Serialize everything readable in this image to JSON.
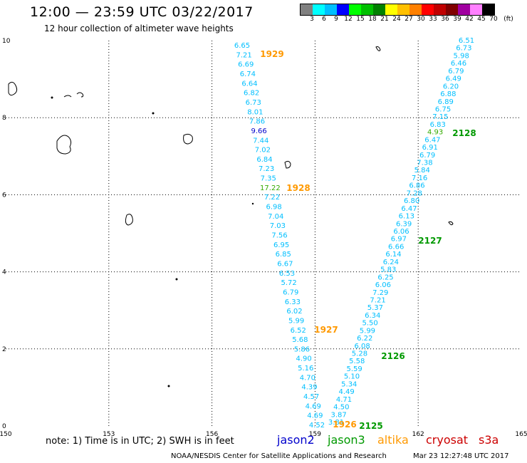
{
  "header": {
    "title": "12:00 — 23:59 UTC 03/22/2017",
    "subtitle": "12 hour collection of altimeter wave heights"
  },
  "scale": {
    "labels": [
      "3",
      "6",
      "9",
      "12",
      "15",
      "18",
      "21",
      "24",
      "27",
      "30",
      "33",
      "36",
      "39",
      "42",
      "45",
      "70",
      "(ft)"
    ],
    "colors": [
      "#808080",
      "#00ffff",
      "#00bfff",
      "#0000ff",
      "#00ff00",
      "#00c000",
      "#008000",
      "#ffff00",
      "#ffc000",
      "#ff8000",
      "#ff0000",
      "#c00000",
      "#800000",
      "#a000a0",
      "#ff80ff",
      "#000000"
    ]
  },
  "footer": {
    "note": "note:  1) Time is in UTC;  2) SWH is in feet",
    "credit": "NOAA/NESDIS Center for Satellite Applications and Research",
    "timestamp": "Mar 23 12:27:48 UTC 2017",
    "legend": [
      {
        "label": "jason2",
        "color": "#0000cc"
      },
      {
        "label": "jason3",
        "color": "#009900"
      },
      {
        "label": "altika",
        "color": "#ff9900"
      },
      {
        "label": "cryosat",
        "color": "#cc0000"
      },
      {
        "label": "s3a",
        "color": "#cc0000"
      }
    ]
  },
  "map": {
    "lon_ticks": [
      "150",
      "153",
      "156",
      "159",
      "162",
      "165"
    ],
    "lat_ticks": [
      "0",
      "2",
      "4",
      "6",
      "8",
      "10"
    ],
    "tracks": [
      {
        "name": "altika-1929-1928-1927-1926",
        "values": [
          "6.65",
          "7.21",
          "6.69",
          "6.74",
          "6.64",
          "6.82",
          "6.73",
          "8.01",
          "7.86",
          "9.66",
          "7.44",
          "7.02",
          "6.84",
          "7.23",
          "7.35",
          "17.22",
          "7.22",
          "6.98",
          "7.04",
          "7.03",
          "7.56",
          "6.95",
          "6.85",
          "6.67",
          "6.53",
          "5.72",
          "6.79",
          "6.33",
          "6.02",
          "5.99",
          "6.52",
          "5.68",
          "5.86",
          "4.90",
          "5.16",
          "4.70",
          "4.39",
          "4.57",
          "4.69",
          "4.69",
          "4.52"
        ],
        "value_colors": {
          "9.66": "#0000cc",
          "17.22": "#33aa00"
        }
      },
      {
        "name": "jason3-2128-2127-2126-2125",
        "values": [
          "6.51",
          "6.73",
          "5.98",
          "6.46",
          "6.79",
          "6.49",
          "6.20",
          "6.88",
          "6.89",
          "6.75",
          "7.15",
          "6.83",
          "4.93",
          "6.47",
          "6.91",
          "6.79",
          "7.38",
          "5.84",
          "7.16",
          "6.86",
          "7.28",
          "6.80",
          "6.47",
          "6.13",
          "6.39",
          "6.06",
          "6.97",
          "6.66",
          "6.14",
          "6.24",
          "5.83",
          "6.25",
          "6.06",
          "7.29",
          "7.21",
          "5.37",
          "6.34",
          "5.50",
          "5.99",
          "6.22",
          "6.08",
          "5.28",
          "5.58",
          "5.59",
          "5.10",
          "5.34",
          "4.49",
          "4.71",
          "4.50",
          "3.87",
          "3.81"
        ],
        "value_colors": {
          "4.93": "#33aa00"
        }
      }
    ],
    "time_labels": [
      {
        "text": "1929",
        "color": "#ff9900"
      },
      {
        "text": "1928",
        "color": "#ff9900"
      },
      {
        "text": "1927",
        "color": "#ff9900"
      },
      {
        "text": "1926",
        "color": "#ff9900"
      },
      {
        "text": "2128",
        "color": "#009900"
      },
      {
        "text": "2127",
        "color": "#009900"
      },
      {
        "text": "2126",
        "color": "#009900"
      },
      {
        "text": "2125",
        "color": "#009900"
      }
    ]
  }
}
